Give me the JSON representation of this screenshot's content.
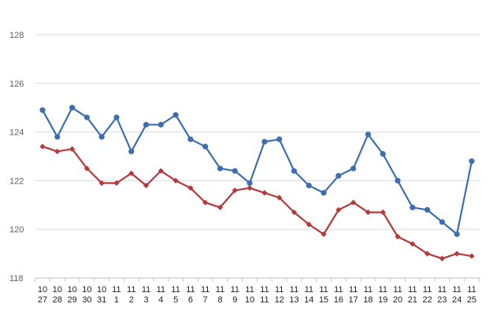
{
  "chart_data": {
    "type": "line",
    "categories": [
      [
        "10",
        "27"
      ],
      [
        "10",
        "28"
      ],
      [
        "10",
        "29"
      ],
      [
        "10",
        "30"
      ],
      [
        "10",
        "31"
      ],
      [
        "11",
        "1"
      ],
      [
        "11",
        "2"
      ],
      [
        "11",
        "3"
      ],
      [
        "11",
        "4"
      ],
      [
        "11",
        "5"
      ],
      [
        "11",
        "6"
      ],
      [
        "11",
        "7"
      ],
      [
        "11",
        "8"
      ],
      [
        "11",
        "9"
      ],
      [
        "11",
        "10"
      ],
      [
        "11",
        "11"
      ],
      [
        "11",
        "12"
      ],
      [
        "11",
        "13"
      ],
      [
        "11",
        "14"
      ],
      [
        "11",
        "15"
      ],
      [
        "11",
        "16"
      ],
      [
        "11",
        "17"
      ],
      [
        "11",
        "18"
      ],
      [
        "11",
        "19"
      ],
      [
        "11",
        "20"
      ],
      [
        "11",
        "21"
      ],
      [
        "11",
        "22"
      ],
      [
        "11",
        "23"
      ],
      [
        "11",
        "24"
      ],
      [
        "11",
        "25"
      ]
    ],
    "series": [
      {
        "color": "#3d6fb0",
        "marker": "circle",
        "values": [
          124.9,
          123.8,
          125.0,
          124.6,
          123.8,
          124.6,
          123.2,
          124.3,
          124.3,
          124.7,
          123.7,
          123.4,
          122.5,
          122.4,
          121.9,
          123.6,
          123.7,
          122.4,
          121.8,
          121.5,
          122.2,
          122.5,
          123.9,
          123.1,
          122.0,
          120.9,
          120.8,
          120.3,
          119.8,
          122.8
        ]
      },
      {
        "color": "#b5393b",
        "marker": "diamond",
        "values": [
          123.4,
          123.2,
          123.3,
          122.5,
          121.9,
          121.9,
          122.3,
          121.8,
          122.4,
          122.0,
          121.7,
          121.1,
          120.9,
          121.6,
          121.7,
          121.5,
          121.3,
          120.7,
          120.2,
          119.8,
          120.8,
          121.1,
          120.7,
          120.7,
          119.7,
          119.4,
          119.0,
          118.8,
          119.0,
          118.9
        ]
      }
    ],
    "yticks": [
      118,
      120,
      122,
      124,
      126,
      128
    ],
    "ylim": [
      118,
      128
    ],
    "grid": true,
    "legend": "none"
  }
}
